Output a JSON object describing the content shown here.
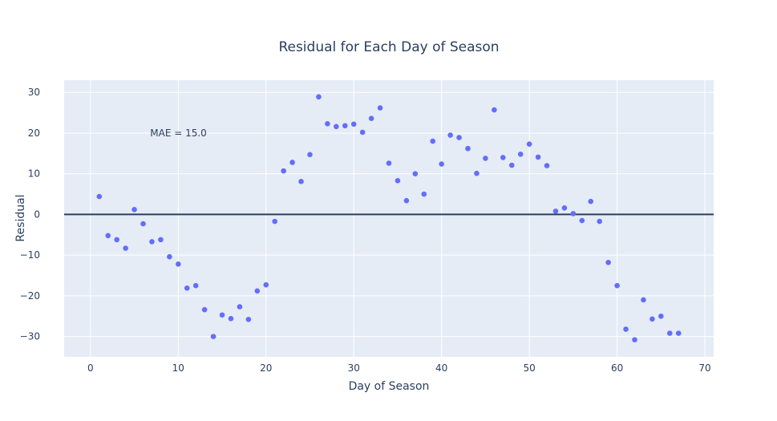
{
  "chart_data": {
    "type": "scatter",
    "title": "Residual for Each Day of Season",
    "xlabel": "Day of Season",
    "ylabel": "Residual",
    "xlim": [
      -3,
      71
    ],
    "ylim": [
      -35,
      33
    ],
    "x_ticks": [
      0,
      10,
      20,
      30,
      40,
      50,
      60,
      70
    ],
    "x_tick_labels": [
      "0",
      "10",
      "20",
      "30",
      "40",
      "50",
      "60",
      "70"
    ],
    "y_ticks": [
      30,
      20,
      10,
      0,
      -10,
      -20,
      -30
    ],
    "y_tick_labels": [
      "30",
      "20",
      "10",
      "0",
      "−10",
      "−20",
      "−30"
    ],
    "grid": true,
    "reference_line": 0,
    "annotation": {
      "text": "MAE = 15.0",
      "x": 6.8,
      "y": 20
    },
    "colors": {
      "marker": "#636efa",
      "plot_bg": "#e5ecf6",
      "grid": "#ffffff",
      "zero_line": "#2a3f5f",
      "text": "#2a3f5f"
    },
    "series": [
      {
        "x": [
          1,
          2,
          3,
          4,
          5,
          6,
          7,
          8,
          9,
          10,
          11,
          12,
          13,
          14,
          15,
          16,
          17,
          18,
          19,
          20,
          21,
          22,
          23,
          24,
          25,
          26,
          27,
          28,
          29,
          30,
          31,
          32,
          33,
          34,
          35,
          36,
          37,
          38,
          39,
          40,
          41,
          42,
          43,
          44,
          45,
          46,
          47,
          48,
          49,
          50,
          51,
          52,
          53,
          54,
          55,
          56,
          57,
          58,
          59,
          60,
          61,
          62,
          63,
          64,
          65,
          66,
          67
        ],
        "y": [
          4.4,
          -5.2,
          -6.2,
          -8.3,
          1.2,
          -2.3,
          -6.7,
          -6.2,
          -10.4,
          -12.2,
          -18.1,
          -17.5,
          -23.4,
          -30.0,
          -24.7,
          -25.6,
          -22.7,
          -25.8,
          -18.8,
          -17.3,
          -1.7,
          10.7,
          12.8,
          8.1,
          14.7,
          28.9,
          22.3,
          21.6,
          21.8,
          22.2,
          20.2,
          23.6,
          26.2,
          12.6,
          8.3,
          3.4,
          10.0,
          5.0,
          18.0,
          12.4,
          19.5,
          18.9,
          16.2,
          10.1,
          13.8,
          25.7,
          14.0,
          12.1,
          14.8,
          17.3,
          14.1,
          12.0,
          0.8,
          1.6,
          0.2,
          -1.5,
          3.2,
          -1.7,
          -11.8,
          -17.5,
          -28.2,
          -30.8,
          -21.0,
          -25.7,
          -25.0,
          -29.2,
          -29.2
        ]
      }
    ]
  }
}
